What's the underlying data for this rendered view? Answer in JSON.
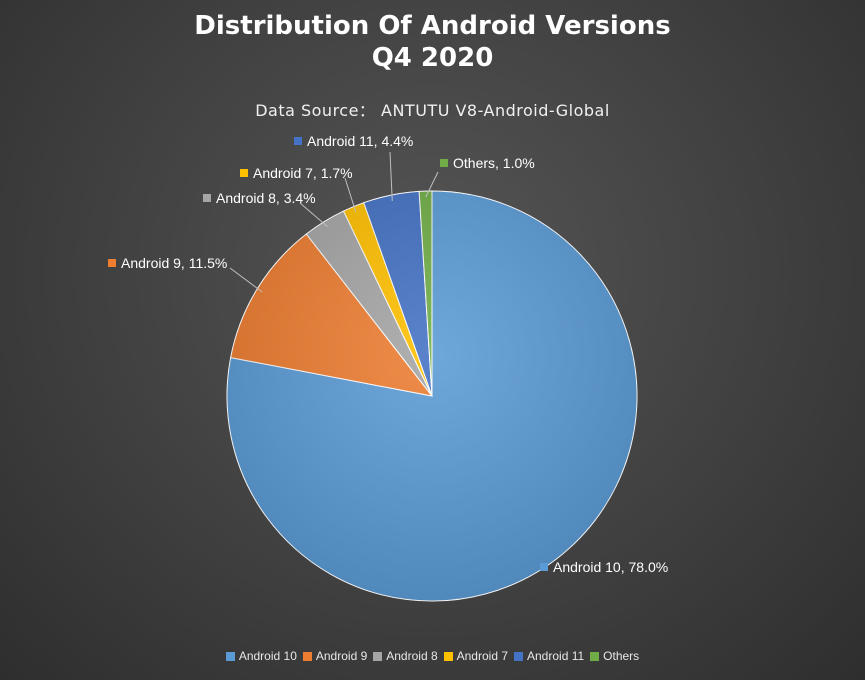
{
  "chart_data": {
    "type": "pie",
    "title": [
      "Distribution Of Android Versions",
      "Q4 2020"
    ],
    "subtitle": "Data Source： ANTUTU V8-Android-Global",
    "legend_position": "bottom",
    "slices": [
      {
        "name": "Android 10",
        "value": 78.0,
        "label": "Android 10, 78.0%",
        "color": "#5b9bd5"
      },
      {
        "name": "Android 9",
        "value": 11.5,
        "label": "Android 9, 11.5%",
        "color": "#ed7d31"
      },
      {
        "name": "Android 8",
        "value": 3.4,
        "label": "Android 8, 3.4%",
        "color": "#a5a5a5"
      },
      {
        "name": "Android 7",
        "value": 1.7,
        "label": "Android 7, 1.7%",
        "color": "#ffc000"
      },
      {
        "name": "Android 11",
        "value": 4.4,
        "label": "Android 11, 4.4%",
        "color": "#4472c4"
      },
      {
        "name": "Others",
        "value": 1.0,
        "label": "Others, 1.0%",
        "color": "#70ad47"
      }
    ]
  }
}
